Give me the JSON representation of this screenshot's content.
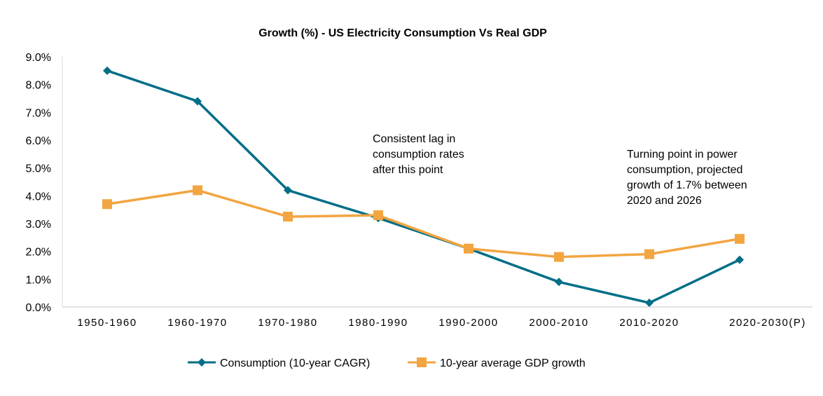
{
  "chart_data": {
    "type": "line",
    "title": "Growth (%) - US Electricity Consumption Vs Real GDP",
    "categories": [
      "1950-1960",
      "1960-1970",
      "1970-1980",
      "1980-1990",
      "1990-2000",
      "2000-2010",
      "2010-2020",
      "2020-2030(P)"
    ],
    "ylim": [
      0,
      9
    ],
    "yticks": [
      "0.0%",
      "1.0%",
      "2.0%",
      "3.0%",
      "4.0%",
      "5.0%",
      "6.0%",
      "7.0%",
      "8.0%",
      "9.0%"
    ],
    "grid": false,
    "legend_position": "bottom",
    "series": [
      {
        "name": "Consumption (10-year CAGR)",
        "color": "#006E87",
        "marker": "diamond",
        "values": [
          8.5,
          7.4,
          4.2,
          3.2,
          2.1,
          0.9,
          0.15,
          1.7
        ]
      },
      {
        "name": "10-year average GDP growth",
        "color": "#F2A541",
        "marker": "square",
        "values": [
          3.7,
          4.2,
          3.25,
          3.3,
          2.1,
          1.8,
          1.9,
          2.45
        ]
      }
    ],
    "annotations": [
      {
        "lines": [
          "Consistent lag in",
          "consumption rates",
          "after this point"
        ]
      },
      {
        "lines": [
          "Turning point in power",
          "consumption, projected",
          "growth of 1.7% between",
          "2020 and 2026"
        ]
      }
    ]
  }
}
